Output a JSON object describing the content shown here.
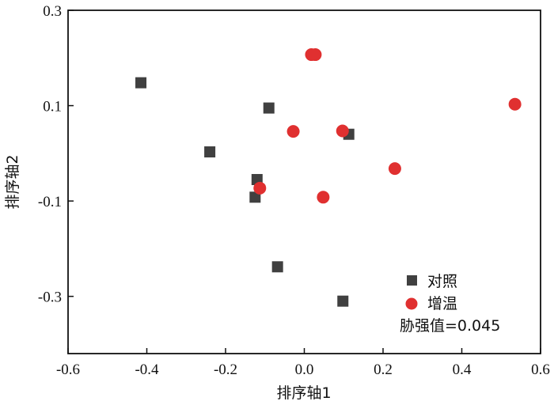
{
  "chart_data": {
    "type": "scatter",
    "xlabel": "排序轴1",
    "ylabel": "排序轴2",
    "xlim": [
      -0.6,
      0.6
    ],
    "ylim": [
      -0.42,
      0.3
    ],
    "xticks": [
      -0.6,
      -0.4,
      -0.2,
      0.0,
      0.2,
      0.4,
      0.6
    ],
    "xtick_labels": [
      "-0.6",
      "-0.4",
      "-0.2",
      "0.0",
      "0.2",
      "0.4",
      "0.6"
    ],
    "yticks": [
      -0.3,
      -0.1,
      0.1,
      0.3
    ],
    "ytick_labels": [
      "-0.3",
      "-0.1",
      "0.1",
      "0.3"
    ],
    "grid": false,
    "legend_position": "bottom-right",
    "annotation": "胁强值=0.045",
    "series": [
      {
        "name": "对照",
        "marker": "square",
        "color": "#404040",
        "x": [
          -0.415,
          -0.24,
          -0.09,
          0.113,
          -0.12,
          -0.125,
          -0.068,
          0.098
        ],
        "y": [
          0.148,
          0.003,
          0.095,
          0.04,
          -0.055,
          -0.092,
          -0.238,
          -0.31
        ]
      },
      {
        "name": "增温",
        "marker": "circle",
        "color": "#e03030",
        "x": [
          0.018,
          0.028,
          0.535,
          -0.028,
          0.097,
          0.23,
          -0.113,
          0.048
        ],
        "y": [
          0.207,
          0.207,
          0.103,
          0.046,
          0.047,
          -0.032,
          -0.073,
          -0.092
        ]
      }
    ]
  }
}
